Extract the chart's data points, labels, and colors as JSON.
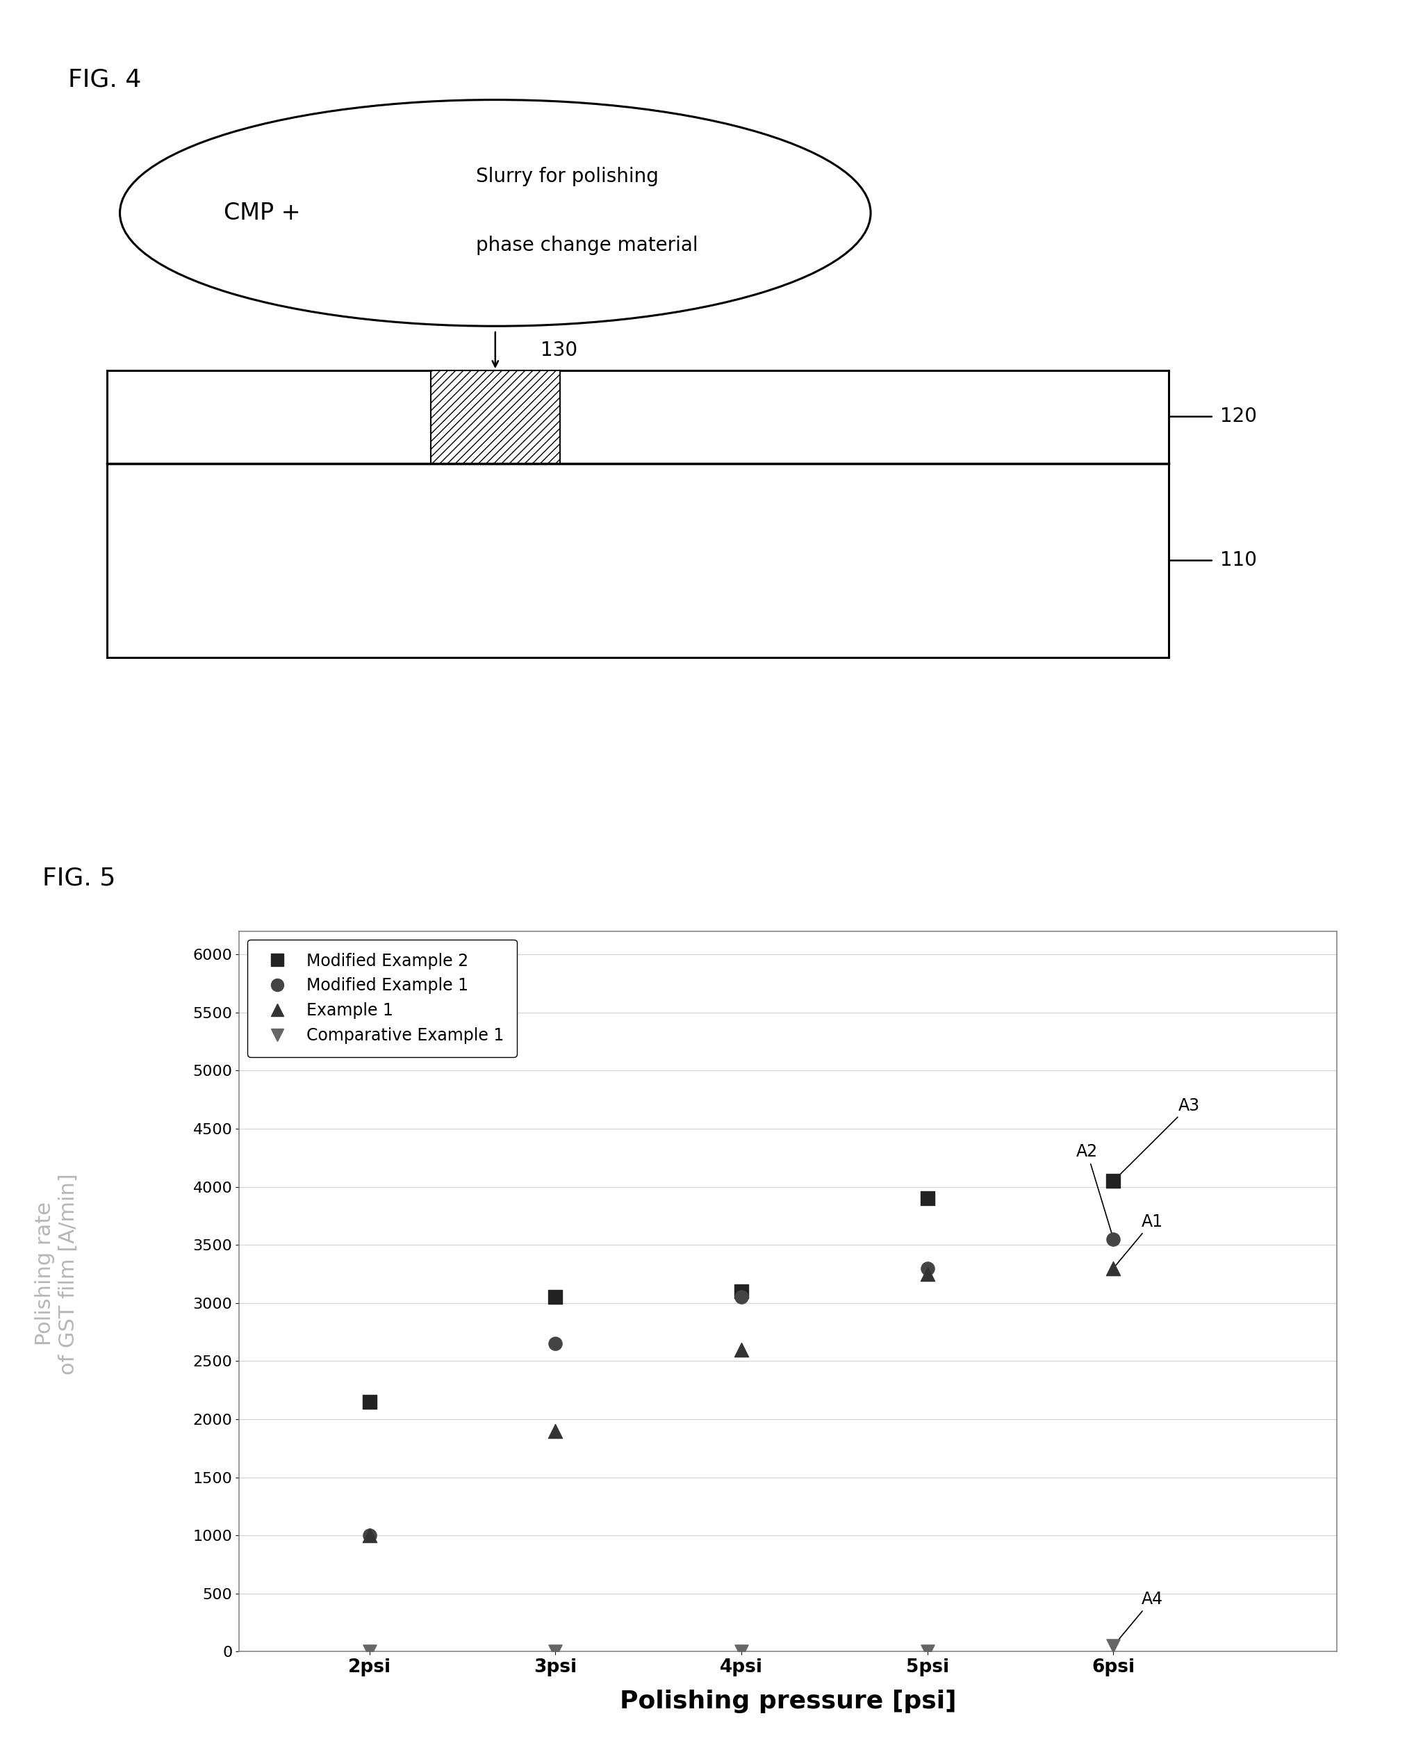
{
  "fig4_label": "FIG. 4",
  "fig5_label": "FIG. 5",
  "ellipse_text_cmp": "CMP +",
  "ellipse_text_slurry": "Slurry for polishing",
  "ellipse_text_pcm": "phase change material",
  "label_130": "130",
  "label_120": "120",
  "label_110": "110",
  "xlabel": "Polishing pressure [psi]",
  "ylabel_line1": "Polishing rate",
  "ylabel_line2": "of GST film [A/min]",
  "x_labels": [
    "2psi",
    "3psi",
    "4psi",
    "5psi",
    "6psi"
  ],
  "x_vals": [
    2,
    3,
    4,
    5,
    6
  ],
  "series": {
    "Modified Example 2": {
      "marker": "s",
      "color": "#222222",
      "values": [
        2150,
        3050,
        3100,
        3900,
        4050
      ]
    },
    "Modified Example 1": {
      "marker": "o",
      "color": "#444444",
      "values": [
        1000,
        2650,
        3050,
        3300,
        3550
      ]
    },
    "Example 1": {
      "marker": "^",
      "color": "#333333",
      "values": [
        1000,
        1900,
        2600,
        3250,
        3300
      ]
    },
    "Comparative Example 1": {
      "marker": "v",
      "color": "#666666",
      "values": [
        0,
        0,
        0,
        0,
        50
      ]
    }
  },
  "ylim": [
    0,
    6200
  ],
  "yticks": [
    0,
    500,
    1000,
    1500,
    2000,
    2500,
    3000,
    3500,
    4000,
    4500,
    5000,
    5500,
    6000
  ],
  "background_color": "#ffffff"
}
